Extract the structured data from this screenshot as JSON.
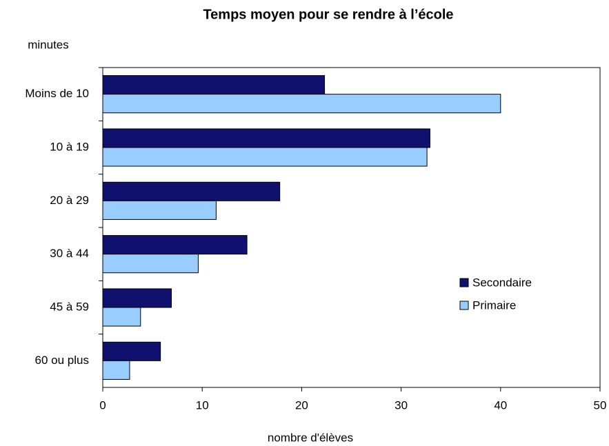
{
  "chart_data": {
    "type": "hbar",
    "title": "Temps moyen pour se rendre à l’école",
    "ylabel": "minutes",
    "xlabel": "nombre d'élèves",
    "categories": [
      "Moins de 10",
      "10 à 19",
      "20 à 29",
      "30 à 44",
      "45 à 59",
      "60 ou plus"
    ],
    "series": [
      {
        "name": "Secondaire",
        "color": "#10106e",
        "values": [
          22.3,
          32.9,
          17.8,
          14.5,
          6.9,
          5.8
        ]
      },
      {
        "name": "Primaire",
        "color": "#99ccff",
        "values": [
          40.0,
          32.6,
          11.4,
          9.6,
          3.8,
          2.7
        ]
      }
    ],
    "xlim": [
      0,
      50
    ],
    "xticks": [
      0,
      10,
      20,
      30,
      40,
      50
    ],
    "legend": "right"
  }
}
